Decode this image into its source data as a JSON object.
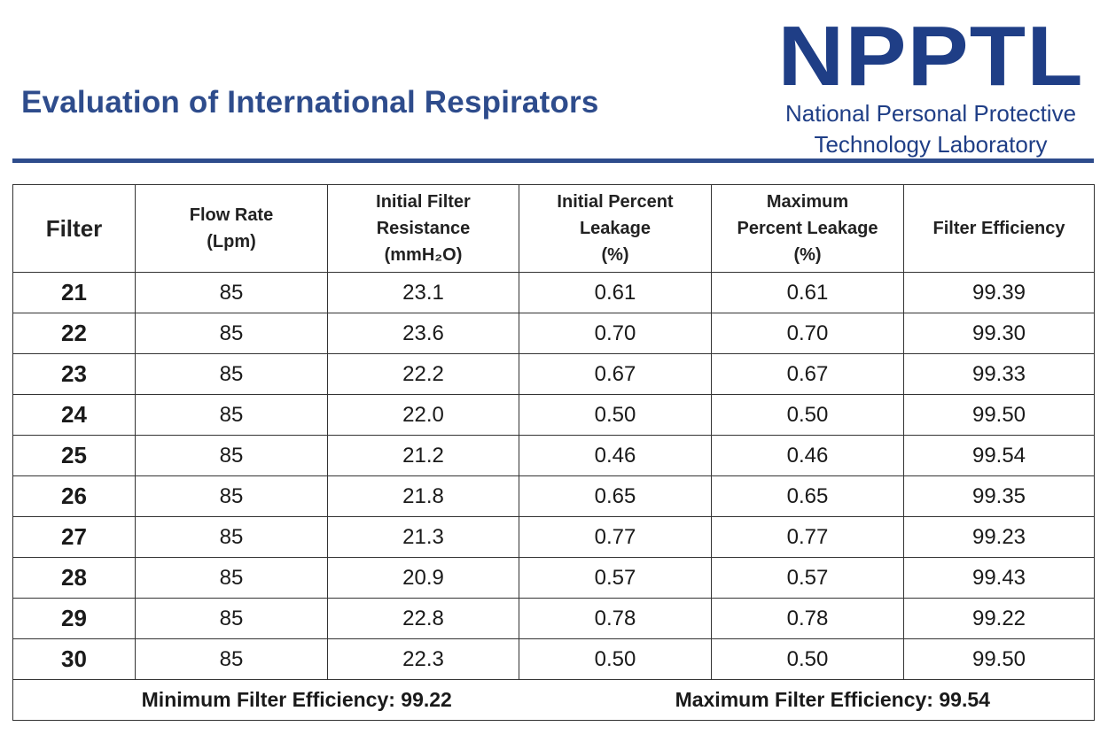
{
  "header": {
    "title": "Evaluation of International Respirators",
    "logo_acronym": "NPPTL",
    "logo_line1": "National Personal Protective",
    "logo_line2": "Technology Laboratory"
  },
  "table": {
    "headers": [
      [
        "Filter"
      ],
      [
        "Flow Rate",
        "(Lpm)"
      ],
      [
        "Initial Filter",
        "Resistance",
        "(mmH₂O)"
      ],
      [
        "Initial Percent",
        "Leakage",
        "(%)"
      ],
      [
        "Maximum",
        "Percent Leakage",
        "(%)"
      ],
      [
        "Filter Efficiency"
      ]
    ],
    "rows": [
      [
        "21",
        "85",
        "23.1",
        "0.61",
        "0.61",
        "99.39"
      ],
      [
        "22",
        "85",
        "23.6",
        "0.70",
        "0.70",
        "99.30"
      ],
      [
        "23",
        "85",
        "22.2",
        "0.67",
        "0.67",
        "99.33"
      ],
      [
        "24",
        "85",
        "22.0",
        "0.50",
        "0.50",
        "99.50"
      ],
      [
        "25",
        "85",
        "21.2",
        "0.46",
        "0.46",
        "99.54"
      ],
      [
        "26",
        "85",
        "21.8",
        "0.65",
        "0.65",
        "99.35"
      ],
      [
        "27",
        "85",
        "21.3",
        "0.77",
        "0.77",
        "99.23"
      ],
      [
        "28",
        "85",
        "20.9",
        "0.57",
        "0.57",
        "99.43"
      ],
      [
        "29",
        "85",
        "22.8",
        "0.78",
        "0.78",
        "99.22"
      ],
      [
        "30",
        "85",
        "22.3",
        "0.50",
        "0.50",
        "99.50"
      ]
    ],
    "summary": {
      "min_text": "Minimum Filter Efficiency:  99.22",
      "max_text": "Maximum Filter Efficiency:  99.54"
    }
  },
  "colors": {
    "title": "#2e4c8c",
    "logo": "#1f3e86",
    "rule": "#2e4c8c"
  }
}
